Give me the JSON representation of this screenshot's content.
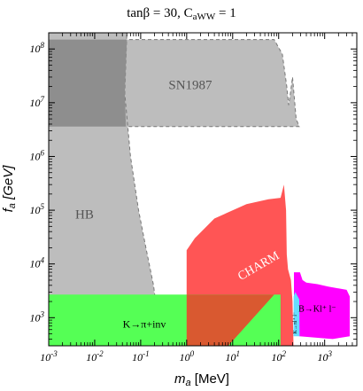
{
  "chart_data": {
    "type": "area",
    "title": "tanβ = 30,  C",
    "title_subscript": "aWW",
    "title_suffix": " = 1",
    "xlabel": "m",
    "xlabel_sub": "a",
    "xlabel_unit": " [MeV]",
    "ylabel": "f",
    "ylabel_sub": "a",
    "ylabel_unit": " [GeV]",
    "xscale": "log",
    "yscale": "log",
    "xlim": [
      0.001,
      5000
    ],
    "ylim": [
      300,
      200000000
    ],
    "x_ticks": [
      {
        "v": 0.001,
        "base": "10",
        "exp": "-3"
      },
      {
        "v": 0.01,
        "base": "10",
        "exp": "-2"
      },
      {
        "v": 0.1,
        "base": "10",
        "exp": "-1"
      },
      {
        "v": 1,
        "base": "10",
        "exp": "0"
      },
      {
        "v": 10,
        "base": "10",
        "exp": "1"
      },
      {
        "v": 100,
        "base": "10",
        "exp": "2"
      },
      {
        "v": 1000,
        "base": "10",
        "exp": "3"
      }
    ],
    "y_ticks": [
      {
        "v": 1000,
        "base": "10",
        "exp": "3"
      },
      {
        "v": 10000,
        "base": "10",
        "exp": "4"
      },
      {
        "v": 100000,
        "base": "10",
        "exp": "5"
      },
      {
        "v": 1000000,
        "base": "10",
        "exp": "6"
      },
      {
        "v": 10000000,
        "base": "10",
        "exp": "7"
      },
      {
        "v": 100000000,
        "base": "10",
        "exp": "8"
      }
    ],
    "regions": [
      {
        "name": "SN1987",
        "color": "#bdbdbd",
        "label": "SN1987",
        "label_at": [
          1.2,
          18000000
        ],
        "polygon": [
          [
            0.001,
            150000000
          ],
          [
            80,
            150000000
          ],
          [
            120,
            80000000
          ],
          [
            150,
            20000000
          ],
          [
            165,
            9000000
          ],
          [
            180,
            15000000
          ],
          [
            200,
            30000000
          ],
          [
            240,
            5000000
          ],
          [
            280,
            3600000
          ],
          [
            0.001,
            3600000
          ]
        ]
      },
      {
        "name": "HB",
        "color": "#bdbdbd",
        "label": "HB",
        "label_at": [
          0.006,
          70000
        ],
        "polygon": [
          [
            0.001,
            200000000
          ],
          [
            0.05,
            200000000
          ],
          [
            0.045,
            15000000
          ],
          [
            0.06,
            1000000
          ],
          [
            0.09,
            100000
          ],
          [
            0.13,
            20000
          ],
          [
            0.19,
            4000
          ],
          [
            0.22,
            1500
          ],
          [
            0.2,
            1300
          ],
          [
            0.001,
            1300
          ]
        ]
      },
      {
        "name": "HB-SN overlap",
        "color": "#8e8e8e",
        "polygon": [
          [
            0.001,
            150000000
          ],
          [
            0.05,
            150000000
          ],
          [
            0.045,
            15000000
          ],
          [
            0.048,
            3600000
          ],
          [
            0.001,
            3600000
          ]
        ]
      },
      {
        "name": "CHARM",
        "color": "#ff5555",
        "label": "CHARM",
        "label_at": [
          40,
          8000
        ],
        "label_rotate": -30,
        "polygon": [
          [
            1,
            300
          ],
          [
            1,
            18000
          ],
          [
            1.5,
            30000
          ],
          [
            4,
            70000
          ],
          [
            20,
            130000
          ],
          [
            60,
            160000
          ],
          [
            110,
            170000
          ],
          [
            130,
            300000
          ],
          [
            145,
            100000
          ],
          [
            150,
            15000
          ],
          [
            160,
            8000
          ],
          [
            185,
            5000
          ],
          [
            200,
            2000
          ],
          [
            210,
            300
          ]
        ]
      },
      {
        "name": "K to pi + inv",
        "color": "#55ff55",
        "label": "K→π+inv",
        "label_at": [
          0.12,
          650
        ],
        "polygon": [
          [
            0.001,
            2700
          ],
          [
            110,
            2700
          ],
          [
            110,
            300
          ],
          [
            0.001,
            300
          ]
        ]
      },
      {
        "name": "K-CHARM overlap",
        "color": "#d95930",
        "polygon": [
          [
            1,
            300
          ],
          [
            1,
            2700
          ],
          [
            80,
            2700
          ],
          [
            8,
            300
          ]
        ]
      },
      {
        "name": "B to K l+ l-",
        "color": "#ff00ff",
        "label": "B→Kl⁺ l⁻",
        "label_at": [
          270,
          1300
        ],
        "polygon": [
          [
            215,
            7000
          ],
          [
            290,
            7000
          ],
          [
            330,
            5000
          ],
          [
            400,
            4500
          ],
          [
            700,
            4200
          ],
          [
            1200,
            3800
          ],
          [
            2000,
            3500
          ],
          [
            3000,
            3300
          ],
          [
            3500,
            2500
          ],
          [
            3500,
            450
          ],
          [
            1500,
            400
          ],
          [
            280,
            450
          ],
          [
            215,
            500
          ]
        ]
      },
      {
        "name": "cyan",
        "color": "#66ddff",
        "label": "K→πl⁺ l⁻",
        "polygon": [
          [
            210,
            450
          ],
          [
            212,
            2500
          ],
          [
            230,
            3000
          ],
          [
            280,
            2200
          ],
          [
            285,
            450
          ]
        ]
      }
    ]
  }
}
